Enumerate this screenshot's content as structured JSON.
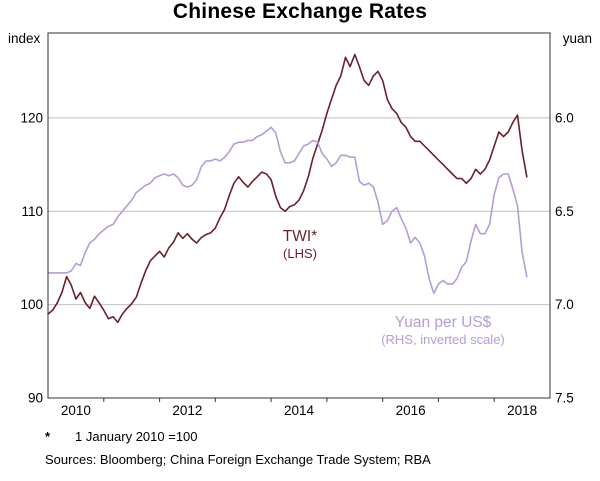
{
  "chart_data": {
    "type": "line",
    "title": "Chinese Exchange Rates",
    "grid": true,
    "x_axis": {
      "start_year": 2010,
      "end_year": 2019,
      "tick_years": [
        2011,
        2012,
        2013,
        2014,
        2015,
        2016,
        2017,
        2018
      ],
      "label_years": [
        2010,
        2012,
        2014,
        2016,
        2018
      ],
      "labels": [
        "2010",
        "2012",
        "2014",
        "2016",
        "2018"
      ]
    },
    "left_axis": {
      "title": "index",
      "top_value": 129.1,
      "bottom_value": 90,
      "tick_values": [
        120,
        110,
        100,
        90
      ],
      "tick_labels": [
        "120",
        "110",
        "100",
        "90"
      ],
      "gridline_values": [
        120,
        110,
        100
      ]
    },
    "right_axis": {
      "title": "yuan",
      "inverted_scale": true,
      "top_value": 5.545,
      "bottom_value": 7.5,
      "tick_values": [
        6.0,
        6.5,
        7.0,
        7.5
      ],
      "tick_labels": [
        "6.0",
        "6.5",
        "7.0",
        "7.5"
      ]
    },
    "x_start": 2010.0,
    "x_step_years": 0.0833333,
    "series": [
      {
        "name": "TWI",
        "axis": "left",
        "color": "#6c1f2c",
        "values": [
          99.0,
          99.4,
          100.2,
          101.3,
          103.0,
          102.1,
          100.6,
          101.3,
          100.2,
          99.6,
          100.9,
          100.2,
          99.4,
          98.5,
          98.7,
          98.1,
          99.0,
          99.6,
          100.1,
          100.8,
          102.3,
          103.6,
          104.7,
          105.2,
          105.7,
          105.1,
          106.1,
          106.7,
          107.7,
          107.1,
          107.6,
          107.0,
          106.6,
          107.2,
          107.5,
          107.7,
          108.2,
          109.3,
          110.2,
          111.7,
          113.0,
          113.7,
          113.1,
          112.6,
          113.2,
          113.7,
          114.2,
          114.0,
          113.4,
          111.6,
          110.4,
          110.0,
          110.5,
          110.7,
          111.2,
          112.2,
          113.7,
          115.7,
          117.2,
          118.7,
          120.5,
          122.0,
          123.5,
          124.5,
          126.5,
          125.5,
          126.8,
          125.5,
          124.0,
          123.5,
          124.5,
          125.0,
          124.0,
          122.0,
          121.0,
          120.5,
          119.5,
          119.0,
          118.0,
          117.5,
          117.5,
          117.0,
          116.5,
          116.0,
          115.5,
          115.0,
          114.5,
          114.0,
          113.5,
          113.5,
          113.0,
          113.5,
          114.5,
          114.0,
          114.5,
          115.5,
          117.0,
          118.5,
          118.0,
          118.5,
          119.5,
          120.3,
          116.5,
          113.7
        ]
      },
      {
        "name": "Yuan per US$",
        "axis": "right",
        "color": "#b59cd9",
        "values": [
          6.83,
          6.83,
          6.83,
          6.83,
          6.83,
          6.82,
          6.78,
          6.79,
          6.72,
          6.67,
          6.65,
          6.62,
          6.6,
          6.58,
          6.57,
          6.53,
          6.5,
          6.47,
          6.44,
          6.4,
          6.38,
          6.36,
          6.35,
          6.32,
          6.31,
          6.3,
          6.31,
          6.3,
          6.32,
          6.36,
          6.37,
          6.36,
          6.33,
          6.26,
          6.23,
          6.23,
          6.22,
          6.23,
          6.21,
          6.18,
          6.14,
          6.13,
          6.13,
          6.12,
          6.12,
          6.1,
          6.09,
          6.07,
          6.05,
          6.08,
          6.18,
          6.24,
          6.24,
          6.23,
          6.19,
          6.15,
          6.14,
          6.12,
          6.13,
          6.19,
          6.22,
          6.26,
          6.24,
          6.2,
          6.2,
          6.21,
          6.21,
          6.34,
          6.36,
          6.35,
          6.37,
          6.45,
          6.57,
          6.55,
          6.5,
          6.48,
          6.54,
          6.59,
          6.67,
          6.64,
          6.67,
          6.74,
          6.86,
          6.94,
          6.89,
          6.87,
          6.89,
          6.89,
          6.86,
          6.8,
          6.77,
          6.66,
          6.57,
          6.62,
          6.62,
          6.57,
          6.41,
          6.32,
          6.3,
          6.3,
          6.38,
          6.47,
          6.72,
          6.85
        ]
      }
    ],
    "annotations": [
      {
        "series": "TWI",
        "lines": [
          "TWI*",
          "(LHS)"
        ]
      },
      {
        "series": "Yuan per US$",
        "lines": [
          "Yuan per US$",
          "(RHS, inverted scale)"
        ]
      }
    ],
    "footnote_marker": "*",
    "footnote_text": "1 January 2010 =100",
    "sources_text": "Sources: Bloomberg; China Foreign Exchange Trade System; RBA",
    "colors": {
      "gridline": "#bfbfbf",
      "frame": "#333333",
      "text": "#000000"
    }
  }
}
